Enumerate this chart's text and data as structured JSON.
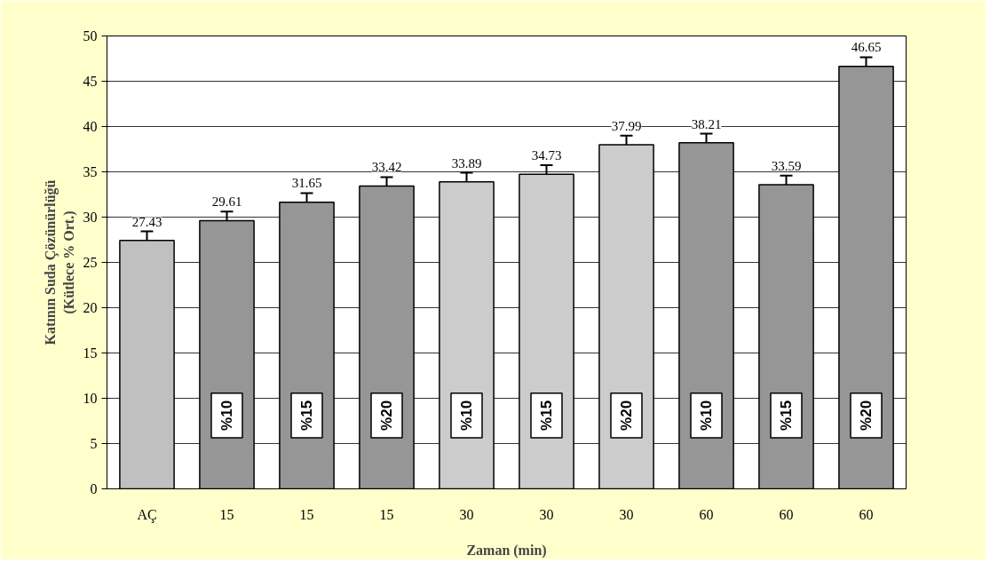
{
  "chart_data": {
    "type": "bar",
    "xlabel": "Zaman (min)",
    "ylabel": "Katının Suda Çözünürlüğü\n(Kütlece % Ort.)",
    "categories": [
      "AÇ",
      "15",
      "15",
      "15",
      "30",
      "30",
      "30",
      "60",
      "60",
      "60"
    ],
    "values": [
      27.43,
      29.61,
      31.65,
      33.42,
      33.89,
      34.73,
      37.99,
      38.21,
      33.59,
      46.65
    ],
    "errors": [
      1,
      1,
      1,
      1,
      1,
      1,
      1,
      1,
      1,
      1
    ],
    "colors": [
      "#c0c0c0",
      "#969696",
      "#969696",
      "#969696",
      "#cccccc",
      "#cccccc",
      "#cccccc",
      "#969696",
      "#969696",
      "#969696"
    ],
    "data_labels": true,
    "annotations": [
      "%10",
      "%15",
      "%20",
      "%10",
      "%15",
      "%20",
      "%10",
      "%15",
      "%20"
    ],
    "ylim": [
      0,
      50
    ],
    "yticks": [
      0,
      5,
      10,
      15,
      20,
      25,
      30,
      35,
      40,
      45,
      50
    ],
    "grid": "y"
  }
}
